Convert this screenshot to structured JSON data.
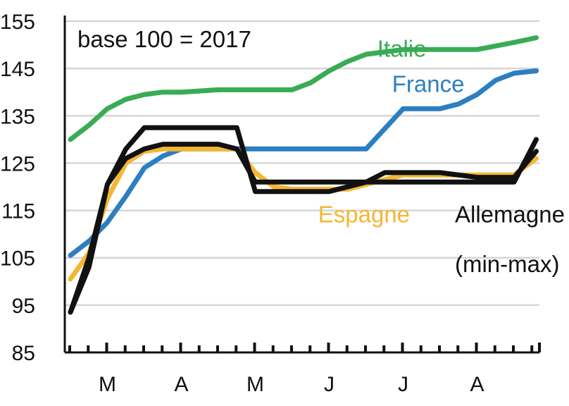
{
  "chart_data": {
    "type": "line",
    "note": "base 100 = 2017",
    "ylim": [
      85,
      155
    ],
    "yticks": [
      85,
      95,
      105,
      115,
      125,
      135,
      145,
      155
    ],
    "x_months": [
      "M",
      "A",
      "M",
      "J",
      "J",
      "A"
    ],
    "x_range": [
      0,
      6.3
    ],
    "grid": true,
    "series": [
      {
        "name": "Italie",
        "color": "#3aab55",
        "x": [
          0.0,
          0.25,
          0.5,
          0.75,
          1.0,
          1.25,
          1.5,
          2.0,
          2.5,
          3.0,
          3.25,
          3.5,
          3.75,
          4.0,
          4.5,
          5.0,
          5.5,
          6.0,
          6.3
        ],
        "y": [
          130,
          133,
          136.5,
          138.5,
          139.5,
          140,
          140,
          140.5,
          140.5,
          140.5,
          142,
          144.5,
          146.5,
          148,
          149,
          149,
          149,
          150.5,
          151.5
        ]
      },
      {
        "name": "France",
        "color": "#2c7fc1",
        "x": [
          0.0,
          0.25,
          0.5,
          0.75,
          1.0,
          1.25,
          1.5,
          2.0,
          2.5,
          3.0,
          3.25,
          3.5,
          3.75,
          4.0,
          4.5,
          4.75,
          5.0,
          5.25,
          5.5,
          5.75,
          6.0,
          6.3
        ],
        "y": [
          105.5,
          108.5,
          112.5,
          118,
          124,
          126.5,
          128,
          128,
          128,
          128,
          128,
          128,
          128,
          128,
          136.5,
          136.5,
          136.5,
          137.5,
          139.5,
          142.5,
          144,
          144.5
        ]
      },
      {
        "name": "Espagne",
        "color": "#f4b731",
        "x": [
          0.0,
          0.25,
          0.5,
          0.75,
          1.0,
          1.25,
          1.5,
          2.0,
          2.25,
          2.5,
          2.75,
          3.0,
          3.25,
          3.5,
          3.75,
          4.0,
          4.5,
          5.0,
          5.5,
          6.0,
          6.3
        ],
        "y": [
          100.5,
          106,
          117.5,
          125,
          127.5,
          128,
          128,
          128,
          128,
          123,
          120,
          119.5,
          119.5,
          119.5,
          119.5,
          120.5,
          122.5,
          122.5,
          122.5,
          122.5,
          126
        ]
      },
      {
        "name": "Allemagne (min-max)",
        "color": "#111111",
        "x": [
          0.0,
          0.25,
          0.5,
          0.75,
          1.0,
          1.25,
          1.5,
          2.0,
          2.25,
          2.5,
          2.75,
          3.0,
          3.5,
          4.0,
          4.5,
          5.0,
          5.5,
          6.0,
          6.3
        ],
        "y": [
          93.5,
          103,
          120.5,
          128,
          132.5,
          132.5,
          132.5,
          132.5,
          132.5,
          119,
          119,
          119,
          119,
          121,
          121,
          121,
          121,
          121,
          130
        ]
      },
      {
        "name": "Allemagne (min-max)",
        "color": "#111111",
        "x": [
          0.0,
          0.25,
          0.5,
          0.75,
          1.0,
          1.25,
          1.5,
          2.0,
          2.25,
          2.5,
          2.75,
          3.0,
          3.5,
          4.0,
          4.25,
          4.5,
          5.0,
          5.5,
          6.0,
          6.3
        ],
        "y": [
          93.5,
          105,
          120.5,
          126,
          128,
          129,
          129,
          129,
          128,
          121,
          121,
          121,
          121,
          121,
          123,
          123,
          123,
          122,
          122,
          127.5
        ]
      }
    ],
    "labels": [
      {
        "text": "Italie",
        "series": "Italie",
        "x": 4.15,
        "y": 147.5
      },
      {
        "text": "France",
        "series": "France",
        "x": 4.35,
        "y": 140
      },
      {
        "text": "Espagne",
        "series": "Espagne",
        "x": 3.35,
        "y": 112.5
      },
      {
        "text": "Allemagne",
        "series": "Allemagne (min-max)",
        "x": 5.2,
        "y": 112.5
      },
      {
        "text": "(min-max)",
        "series": "Allemagne (min-max)",
        "x": 5.2,
        "y": 102
      }
    ]
  }
}
